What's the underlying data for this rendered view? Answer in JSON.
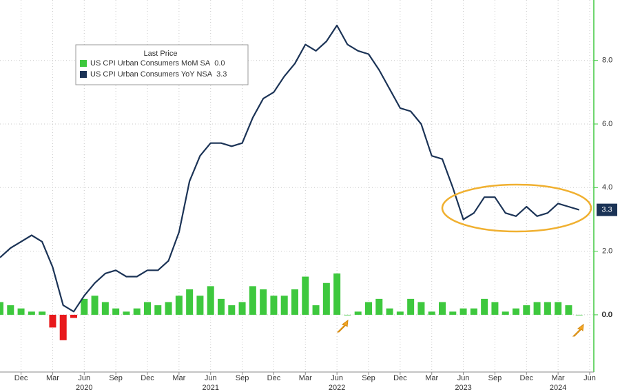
{
  "chart_data": {
    "type": "bar-line",
    "legend_title": "Last Price",
    "x": [
      "2019-10",
      "2019-11",
      "2019-12",
      "2020-01",
      "2020-02",
      "2020-03",
      "2020-04",
      "2020-05",
      "2020-06",
      "2020-07",
      "2020-08",
      "2020-09",
      "2020-10",
      "2020-11",
      "2020-12",
      "2021-01",
      "2021-02",
      "2021-03",
      "2021-04",
      "2021-05",
      "2021-06",
      "2021-07",
      "2021-08",
      "2021-09",
      "2021-10",
      "2021-11",
      "2021-12",
      "2022-01",
      "2022-02",
      "2022-03",
      "2022-04",
      "2022-05",
      "2022-06",
      "2022-07",
      "2022-08",
      "2022-09",
      "2022-10",
      "2022-11",
      "2022-12",
      "2023-01",
      "2023-02",
      "2023-03",
      "2023-04",
      "2023-05",
      "2023-06",
      "2023-07",
      "2023-08",
      "2023-09",
      "2023-10",
      "2023-11",
      "2023-12",
      "2024-01",
      "2024-02",
      "2024-03",
      "2024-04",
      "2024-05"
    ],
    "series": [
      {
        "name": "US CPI Urban Consumers MoM SA",
        "kind": "bar",
        "color": "#3ec83e",
        "negative_color": "#e8191c",
        "last": {
          "value": 0,
          "label": "0.0"
        },
        "values": [
          0.4,
          0.3,
          0.2,
          0.1,
          0.1,
          -0.4,
          -0.8,
          -0.1,
          0.5,
          0.6,
          0.4,
          0.2,
          0.1,
          0.2,
          0.4,
          0.3,
          0.4,
          0.6,
          0.8,
          0.6,
          0.9,
          0.5,
          0.3,
          0.4,
          0.9,
          0.8,
          0.6,
          0.6,
          0.8,
          1.2,
          0.3,
          1.0,
          1.3,
          0.0,
          0.1,
          0.4,
          0.5,
          0.2,
          0.1,
          0.5,
          0.4,
          0.1,
          0.4,
          0.1,
          0.2,
          0.2,
          0.5,
          0.4,
          0.1,
          0.2,
          0.3,
          0.4,
          0.4,
          0.4,
          0.3,
          0.0
        ]
      },
      {
        "name": "US CPI Urban Consumers YoY NSA",
        "kind": "line",
        "color": "#1b3356",
        "last": {
          "value": 3.3,
          "label": "3.3"
        },
        "values": [
          1.8,
          2.1,
          2.3,
          2.5,
          2.3,
          1.5,
          0.3,
          0.1,
          0.6,
          1.0,
          1.3,
          1.4,
          1.2,
          1.2,
          1.4,
          1.4,
          1.7,
          2.6,
          4.2,
          5.0,
          5.4,
          5.4,
          5.3,
          5.4,
          6.2,
          6.8,
          7.0,
          7.5,
          7.9,
          8.5,
          8.3,
          8.6,
          9.1,
          8.5,
          8.3,
          8.2,
          7.7,
          7.1,
          6.5,
          6.4,
          6.0,
          5.0,
          4.9,
          4.0,
          3.0,
          3.2,
          3.7,
          3.7,
          3.2,
          3.1,
          3.4,
          3.1,
          3.2,
          3.5,
          3.4,
          3.3
        ]
      }
    ],
    "xlim": [
      "2019-10",
      "2024-06"
    ],
    "xticks": [
      {
        "value": "2019-12",
        "label": "Dec"
      },
      {
        "value": "2020-03",
        "label": "Mar"
      },
      {
        "value": "2020-06",
        "label": "Jun"
      },
      {
        "value": "2020-09",
        "label": "Sep"
      },
      {
        "value": "2020-12",
        "label": "Dec"
      },
      {
        "value": "2021-03",
        "label": "Mar"
      },
      {
        "value": "2021-06",
        "label": "Jun"
      },
      {
        "value": "2021-09",
        "label": "Sep"
      },
      {
        "value": "2021-12",
        "label": "Dec"
      },
      {
        "value": "2022-03",
        "label": "Mar"
      },
      {
        "value": "2022-06",
        "label": "Jun"
      },
      {
        "value": "2022-09",
        "label": "Sep"
      },
      {
        "value": "2022-12",
        "label": "Dec"
      },
      {
        "value": "2023-03",
        "label": "Mar"
      },
      {
        "value": "2023-06",
        "label": "Jun"
      },
      {
        "value": "2023-09",
        "label": "Sep"
      },
      {
        "value": "2023-12",
        "label": "Dec"
      },
      {
        "value": "2024-03",
        "label": "Mar"
      },
      {
        "value": "2024-06",
        "label": "Jun"
      }
    ],
    "xyears": [
      {
        "value": "2020-06",
        "label": "2020"
      },
      {
        "value": "2021-06",
        "label": "2021"
      },
      {
        "value": "2022-06",
        "label": "2022"
      },
      {
        "value": "2023-06",
        "label": "2023"
      },
      {
        "value": "2024-03",
        "label": "2024"
      }
    ],
    "ylim": [
      -1.8,
      9.9
    ],
    "yticks": [
      {
        "value": 0,
        "label": "0.0"
      },
      {
        "value": 2,
        "label": "2.0"
      },
      {
        "value": 4,
        "label": "4.0"
      },
      {
        "value": 6,
        "label": "6.0"
      },
      {
        "value": 8,
        "label": "8.0"
      }
    ],
    "grid": true
  }
}
